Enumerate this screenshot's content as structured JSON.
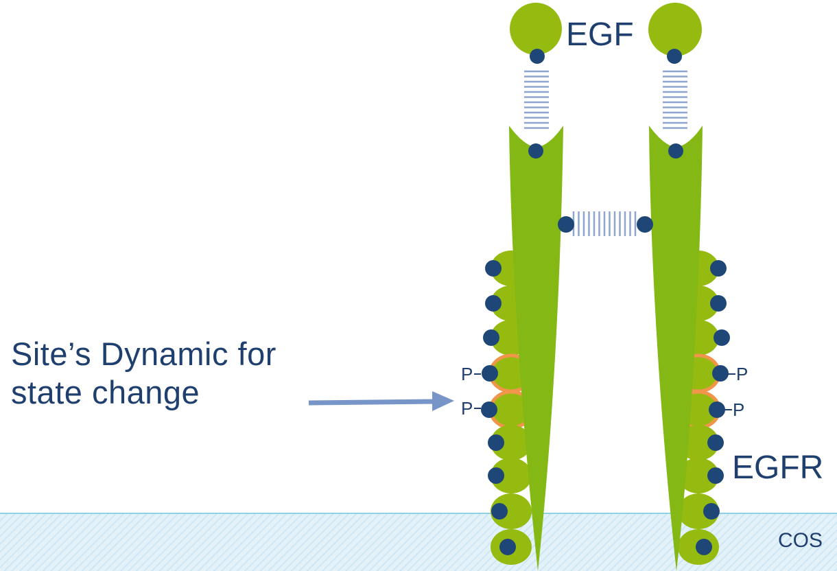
{
  "labels": {
    "ligand": "EGF",
    "receptor": "EGFR",
    "cell": "COS",
    "site_line1": "Site’s Dynamic for",
    "site_line2": "state change",
    "phospho": "P"
  },
  "colors": {
    "green_dark": "#84b814",
    "green_light": "#96bb10",
    "node": "#1e4677",
    "bond": "#8ea5d0",
    "phospho_ring": "#f0954a",
    "membrane_fill": "#e3f1f9",
    "membrane_hatch": "#c9e4f3",
    "membrane_edge": "#8fd0e6",
    "arrow": "#7895c9",
    "text": "#1f3f6e"
  }
}
